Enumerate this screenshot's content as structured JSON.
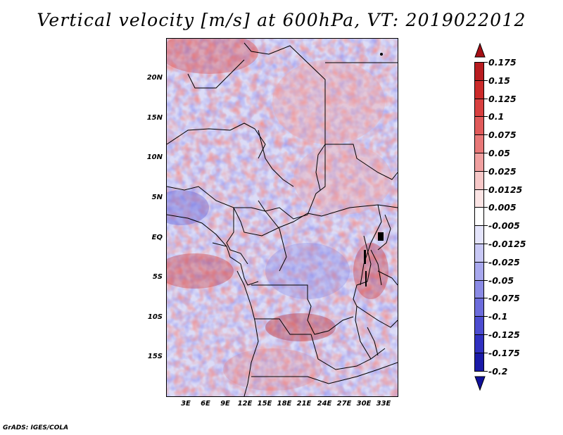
{
  "title": "Vertical velocity [m/s] at 600hPa, VT: 2019022012",
  "footer": "GrADS: IGES/COLA",
  "map": {
    "lat_labels": [
      "20N",
      "15N",
      "10N",
      "5N",
      "EQ",
      "5S",
      "10S",
      "15S"
    ],
    "lon_labels": [
      "3E",
      "6E",
      "9E",
      "12E",
      "15E",
      "18E",
      "21E",
      "24E",
      "27E",
      "30E",
      "33E"
    ]
  },
  "colorbar": {
    "labels": [
      "0.175",
      "0.15",
      "0.125",
      "0.1",
      "0.075",
      "0.05",
      "0.025",
      "0.0125",
      "0.005",
      "-0.005",
      "-0.0125",
      "-0.025",
      "-0.05",
      "-0.075",
      "-0.1",
      "-0.125",
      "-0.175",
      "-0.2"
    ],
    "colors": [
      "#a50f15",
      "#b81c20",
      "#cb2a2a",
      "#d84040",
      "#e05a5a",
      "#e87878",
      "#f0a0a0",
      "#f7c8c8",
      "#fbe4e4",
      "#ffffff",
      "#e4e4fb",
      "#c8c8f5",
      "#a8a8ee",
      "#8a8ae5",
      "#6c6cdc",
      "#4c4cd0",
      "#3030c0",
      "#1a1aa8",
      "#10109a"
    ]
  }
}
